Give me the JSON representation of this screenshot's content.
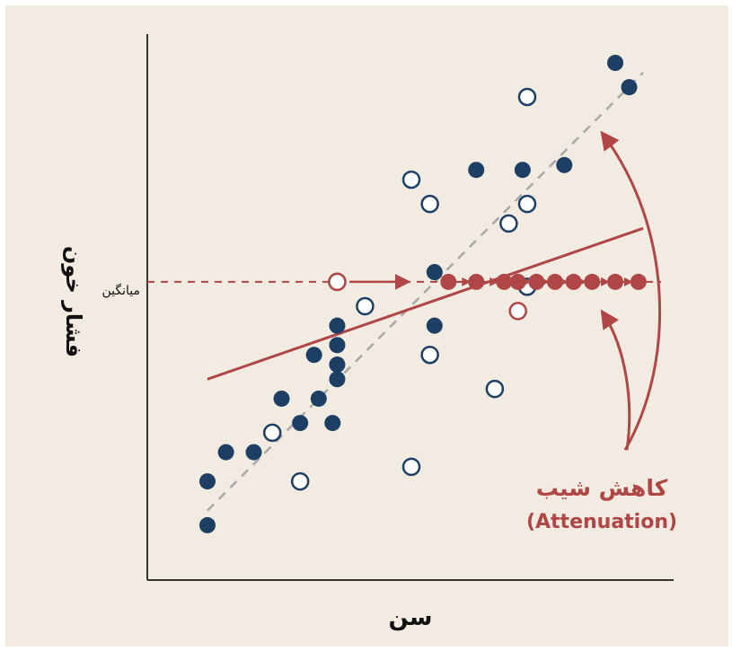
{
  "chart_data": {
    "type": "scatter",
    "title": "",
    "xlabel": "سن",
    "ylabel": "فشار خون",
    "xlim": [
      0,
      100
    ],
    "ylim": [
      0,
      100
    ],
    "grid": false,
    "mean_label": "میانگین",
    "mean_y": 55,
    "annotation": {
      "line1": "کاهش شیب",
      "line2": "(Attenuation)"
    },
    "colors": {
      "filled": "#1c3f63",
      "open_stroke": "#1c3f63",
      "open_fill": "#ffffff",
      "attenuated": "#b04646",
      "diagonal": "#a8a8a8"
    },
    "series": [
      {
        "marker": "filled",
        "points": [
          [
            6,
            5
          ],
          [
            6,
            14
          ],
          [
            10,
            20
          ],
          [
            16,
            20
          ],
          [
            22,
            31
          ],
          [
            26,
            26
          ],
          [
            29,
            40
          ],
          [
            30,
            31
          ],
          [
            33,
            26
          ],
          [
            34,
            35
          ],
          [
            34,
            38
          ],
          [
            34,
            42
          ],
          [
            34,
            46
          ],
          [
            55,
            46
          ],
          [
            55,
            57
          ],
          [
            64,
            78
          ],
          [
            74,
            78
          ],
          [
            83,
            79
          ],
          [
            97,
            95
          ],
          [
            94,
            100
          ]
        ]
      },
      {
        "marker": "open",
        "points": [
          [
            20,
            24
          ],
          [
            26,
            14
          ],
          [
            40,
            50
          ],
          [
            50,
            17
          ],
          [
            50,
            76
          ],
          [
            54,
            71
          ],
          [
            54,
            40
          ],
          [
            68,
            33
          ],
          [
            71,
            67
          ],
          [
            75,
            54
          ],
          [
            75,
            71
          ],
          [
            75,
            93
          ],
          [
            34,
            55
          ]
        ]
      },
      {
        "marker": "attenuated",
        "points": [
          [
            58,
            55
          ],
          [
            64,
            55
          ],
          [
            70,
            55
          ],
          [
            73,
            55
          ],
          [
            77,
            55
          ],
          [
            81,
            55
          ],
          [
            85,
            55
          ],
          [
            89,
            55
          ],
          [
            94,
            55
          ],
          [
            99,
            55
          ]
        ]
      }
    ],
    "diagonal_line": {
      "from": [
        6,
        8
      ],
      "to": [
        100,
        98
      ]
    },
    "regression_line": {
      "from": [
        6,
        35
      ],
      "to": [
        100,
        66
      ]
    }
  }
}
